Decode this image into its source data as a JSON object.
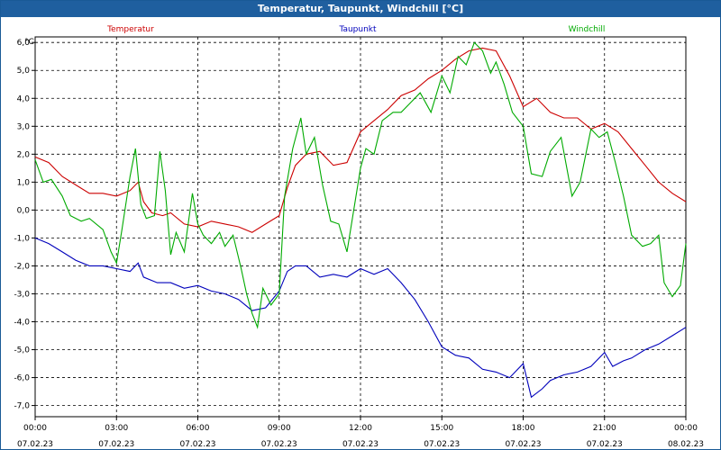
{
  "window": {
    "title": "Temperatur, Taupunkt, Windchill [°C]"
  },
  "chart_data": {
    "type": "line",
    "title": "Temperatur, Taupunkt, Windchill [°C]",
    "ylabel": "°C",
    "ylim": [
      -7.4,
      6.2
    ],
    "xlim": [
      0,
      24
    ],
    "grid": true,
    "y_ticks": [
      6,
      5,
      4,
      3,
      2,
      1,
      0,
      -1,
      -2,
      -3,
      -4,
      -5,
      -6,
      -7
    ],
    "y_tick_labels": [
      "6,0",
      "5,0",
      "4,0",
      "3,0",
      "2,0",
      "1,0",
      "0,0",
      "-1,0",
      "-2,0",
      "-3,0",
      "-4,0",
      "-5,0",
      "-6,0",
      "-7,0"
    ],
    "x_ticks": [
      {
        "x": 0,
        "time": "00:00",
        "date": "07.02.23"
      },
      {
        "x": 3,
        "time": "03:00",
        "date": "07.02.23"
      },
      {
        "x": 6,
        "time": "06:00",
        "date": "07.02.23"
      },
      {
        "x": 9,
        "time": "09:00",
        "date": "07.02.23"
      },
      {
        "x": 12,
        "time": "12:00",
        "date": "07.02.23"
      },
      {
        "x": 15,
        "time": "15:00",
        "date": "07.02.23"
      },
      {
        "x": 18,
        "time": "18:00",
        "date": "07.02.23"
      },
      {
        "x": 21,
        "time": "21:00",
        "date": "07.02.23"
      },
      {
        "x": 24,
        "time": "00:00",
        "date": "08.02.23"
      }
    ],
    "series": [
      {
        "name": "Temperatur",
        "color": "#cc0000",
        "points": [
          [
            0,
            1.9
          ],
          [
            0.5,
            1.7
          ],
          [
            1,
            1.2
          ],
          [
            1.5,
            0.9
          ],
          [
            2,
            0.6
          ],
          [
            2.5,
            0.6
          ],
          [
            3,
            0.5
          ],
          [
            3.5,
            0.7
          ],
          [
            3.8,
            1.0
          ],
          [
            4,
            0.3
          ],
          [
            4.3,
            -0.1
          ],
          [
            4.7,
            -0.2
          ],
          [
            5,
            -0.1
          ],
          [
            5.5,
            -0.5
          ],
          [
            6,
            -0.6
          ],
          [
            6.5,
            -0.4
          ],
          [
            7,
            -0.5
          ],
          [
            7.5,
            -0.6
          ],
          [
            8,
            -0.8
          ],
          [
            8.5,
            -0.5
          ],
          [
            9,
            -0.2
          ],
          [
            9.3,
            0.8
          ],
          [
            9.6,
            1.6
          ],
          [
            10,
            2.0
          ],
          [
            10.5,
            2.1
          ],
          [
            11,
            1.6
          ],
          [
            11.5,
            1.7
          ],
          [
            12,
            2.8
          ],
          [
            12.5,
            3.2
          ],
          [
            13,
            3.6
          ],
          [
            13.5,
            4.1
          ],
          [
            14,
            4.3
          ],
          [
            14.5,
            4.7
          ],
          [
            15,
            5.0
          ],
          [
            15.5,
            5.4
          ],
          [
            16,
            5.7
          ],
          [
            16.5,
            5.8
          ],
          [
            17,
            5.7
          ],
          [
            17.5,
            4.8
          ],
          [
            18,
            3.7
          ],
          [
            18.5,
            4.0
          ],
          [
            19,
            3.5
          ],
          [
            19.5,
            3.3
          ],
          [
            20,
            3.3
          ],
          [
            20.5,
            2.9
          ],
          [
            21,
            3.1
          ],
          [
            21.5,
            2.8
          ],
          [
            22,
            2.2
          ],
          [
            22.5,
            1.6
          ],
          [
            23,
            1.0
          ],
          [
            23.5,
            0.6
          ],
          [
            24,
            0.3
          ]
        ]
      },
      {
        "name": "Taupunkt",
        "color": "#0000bb",
        "points": [
          [
            0,
            -1.0
          ],
          [
            0.5,
            -1.2
          ],
          [
            1,
            -1.5
          ],
          [
            1.5,
            -1.8
          ],
          [
            2,
            -2.0
          ],
          [
            2.5,
            -2.0
          ],
          [
            3,
            -2.1
          ],
          [
            3.5,
            -2.2
          ],
          [
            3.8,
            -1.9
          ],
          [
            4,
            -2.4
          ],
          [
            4.5,
            -2.6
          ],
          [
            5,
            -2.6
          ],
          [
            5.5,
            -2.8
          ],
          [
            6,
            -2.7
          ],
          [
            6.5,
            -2.9
          ],
          [
            7,
            -3.0
          ],
          [
            7.5,
            -3.2
          ],
          [
            8,
            -3.6
          ],
          [
            8.5,
            -3.5
          ],
          [
            9,
            -2.9
          ],
          [
            9.3,
            -2.2
          ],
          [
            9.6,
            -2.0
          ],
          [
            10,
            -2.0
          ],
          [
            10.5,
            -2.4
          ],
          [
            11,
            -2.3
          ],
          [
            11.5,
            -2.4
          ],
          [
            12,
            -2.1
          ],
          [
            12.5,
            -2.3
          ],
          [
            13,
            -2.1
          ],
          [
            13.5,
            -2.6
          ],
          [
            14,
            -3.2
          ],
          [
            14.5,
            -4.0
          ],
          [
            15,
            -4.9
          ],
          [
            15.5,
            -5.2
          ],
          [
            16,
            -5.3
          ],
          [
            16.5,
            -5.7
          ],
          [
            17,
            -5.8
          ],
          [
            17.5,
            -6.0
          ],
          [
            18,
            -5.5
          ],
          [
            18.3,
            -6.7
          ],
          [
            18.7,
            -6.4
          ],
          [
            19,
            -6.1
          ],
          [
            19.5,
            -5.9
          ],
          [
            20,
            -5.8
          ],
          [
            20.5,
            -5.6
          ],
          [
            21,
            -5.1
          ],
          [
            21.3,
            -5.6
          ],
          [
            21.7,
            -5.4
          ],
          [
            22,
            -5.3
          ],
          [
            22.5,
            -5.0
          ],
          [
            23,
            -4.8
          ],
          [
            23.5,
            -4.5
          ],
          [
            24,
            -4.2
          ]
        ]
      },
      {
        "name": "Windchill",
        "color": "#00aa00",
        "points": [
          [
            0,
            1.8
          ],
          [
            0.3,
            1.0
          ],
          [
            0.6,
            1.1
          ],
          [
            1,
            0.5
          ],
          [
            1.3,
            -0.2
          ],
          [
            1.7,
            -0.4
          ],
          [
            2,
            -0.3
          ],
          [
            2.5,
            -0.7
          ],
          [
            2.8,
            -1.5
          ],
          [
            3,
            -1.9
          ],
          [
            3.2,
            -0.7
          ],
          [
            3.5,
            1.2
          ],
          [
            3.7,
            2.2
          ],
          [
            3.9,
            0.2
          ],
          [
            4.1,
            -0.3
          ],
          [
            4.4,
            -0.2
          ],
          [
            4.6,
            2.1
          ],
          [
            4.8,
            0.7
          ],
          [
            5,
            -1.6
          ],
          [
            5.2,
            -0.8
          ],
          [
            5.5,
            -1.5
          ],
          [
            5.8,
            0.6
          ],
          [
            6,
            -0.5
          ],
          [
            6.2,
            -0.9
          ],
          [
            6.5,
            -1.2
          ],
          [
            6.8,
            -0.8
          ],
          [
            7,
            -1.3
          ],
          [
            7.3,
            -0.9
          ],
          [
            7.6,
            -2.1
          ],
          [
            7.8,
            -3.0
          ],
          [
            8,
            -3.7
          ],
          [
            8.2,
            -4.2
          ],
          [
            8.4,
            -2.8
          ],
          [
            8.7,
            -3.4
          ],
          [
            9,
            -3.0
          ],
          [
            9.2,
            0.5
          ],
          [
            9.5,
            2.2
          ],
          [
            9.8,
            3.3
          ],
          [
            10,
            2.0
          ],
          [
            10.3,
            2.6
          ],
          [
            10.6,
            0.9
          ],
          [
            10.9,
            -0.4
          ],
          [
            11.2,
            -0.5
          ],
          [
            11.5,
            -1.5
          ],
          [
            11.8,
            0.3
          ],
          [
            12,
            1.5
          ],
          [
            12.2,
            2.2
          ],
          [
            12.5,
            2.0
          ],
          [
            12.8,
            3.2
          ],
          [
            13.2,
            3.5
          ],
          [
            13.5,
            3.5
          ],
          [
            13.8,
            3.8
          ],
          [
            14.2,
            4.2
          ],
          [
            14.6,
            3.5
          ],
          [
            15,
            4.8
          ],
          [
            15.3,
            4.2
          ],
          [
            15.6,
            5.5
          ],
          [
            15.9,
            5.2
          ],
          [
            16.2,
            6.0
          ],
          [
            16.5,
            5.7
          ],
          [
            16.8,
            4.9
          ],
          [
            17,
            5.3
          ],
          [
            17.3,
            4.5
          ],
          [
            17.6,
            3.5
          ],
          [
            18,
            3.0
          ],
          [
            18.3,
            1.3
          ],
          [
            18.7,
            1.2
          ],
          [
            19,
            2.1
          ],
          [
            19.4,
            2.6
          ],
          [
            19.8,
            0.5
          ],
          [
            20.1,
            1.0
          ],
          [
            20.5,
            2.9
          ],
          [
            20.8,
            2.6
          ],
          [
            21.1,
            2.8
          ],
          [
            21.4,
            1.7
          ],
          [
            21.7,
            0.5
          ],
          [
            22,
            -0.9
          ],
          [
            22.4,
            -1.3
          ],
          [
            22.7,
            -1.2
          ],
          [
            23,
            -0.9
          ],
          [
            23.2,
            -2.6
          ],
          [
            23.5,
            -3.1
          ],
          [
            23.8,
            -2.7
          ],
          [
            24,
            -1.2
          ]
        ]
      }
    ]
  }
}
